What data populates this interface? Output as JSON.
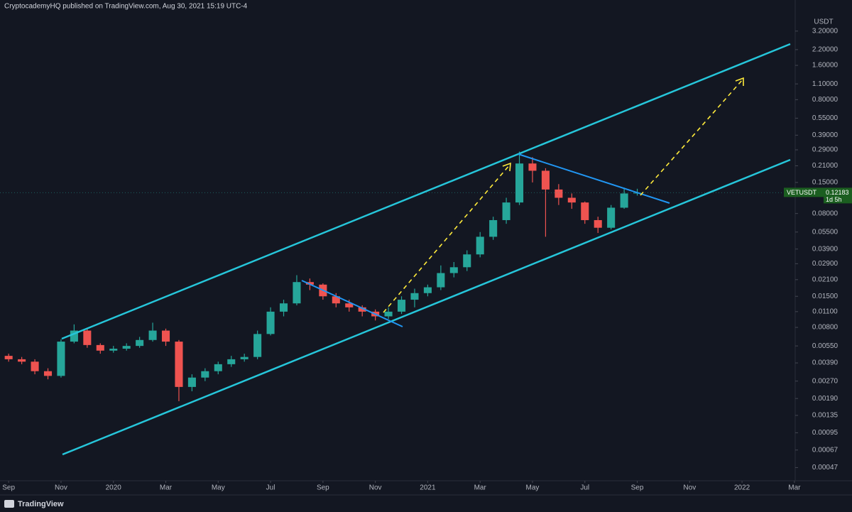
{
  "header": {
    "text": "CryptocademyHQ published on TradingView.com, Aug 30, 2021 15:19 UTC-4"
  },
  "footer": {
    "brand": "TradingView"
  },
  "chart_data": {
    "type": "candlestick",
    "symbol": "VETUSDT",
    "countdown": "1d 5h",
    "currency": "USDT",
    "log_scale": true,
    "grid": false,
    "up_color": "#26a69a",
    "down_color": "#ef5350",
    "x": [
      0,
      0.5,
      1,
      1.5,
      2,
      2.5,
      3,
      3.5,
      4,
      4.5,
      5,
      5.5,
      6,
      6.5,
      7,
      7.5,
      8,
      8.5,
      9,
      9.5,
      10,
      10.5,
      11,
      11.5,
      12,
      12.5,
      13,
      13.5,
      14,
      14.5,
      15,
      15.5,
      16,
      16.5,
      17,
      17.5,
      18,
      18.5,
      19,
      19.5,
      20,
      20.5,
      21,
      21.5,
      22,
      22.5,
      23,
      23.5,
      24
    ],
    "open": [
      0.0045,
      0.0042,
      0.004,
      0.0033,
      0.003,
      0.006,
      0.0075,
      0.0056,
      0.005,
      0.0052,
      0.0055,
      0.0062,
      0.0075,
      0.006,
      0.0024,
      0.0029,
      0.0033,
      0.0038,
      0.0042,
      0.0044,
      0.007,
      0.011,
      0.013,
      0.02,
      0.019,
      0.015,
      0.013,
      0.012,
      0.011,
      0.01,
      0.011,
      0.014,
      0.016,
      0.018,
      0.024,
      0.027,
      0.035,
      0.05,
      0.07,
      0.1,
      0.22,
      0.19,
      0.13,
      0.11,
      0.1,
      0.07,
      0.06,
      0.09,
      0.12
    ],
    "high": [
      0.0047,
      0.0044,
      0.0042,
      0.0035,
      0.0063,
      0.0085,
      0.0078,
      0.0058,
      0.0055,
      0.0058,
      0.0066,
      0.0088,
      0.0078,
      0.0062,
      0.0031,
      0.0035,
      0.004,
      0.0045,
      0.0047,
      0.0075,
      0.012,
      0.014,
      0.023,
      0.0215,
      0.0195,
      0.016,
      0.014,
      0.0125,
      0.0115,
      0.012,
      0.015,
      0.0175,
      0.019,
      0.028,
      0.03,
      0.038,
      0.055,
      0.075,
      0.11,
      0.28,
      0.25,
      0.2,
      0.145,
      0.12,
      0.102,
      0.075,
      0.095,
      0.135,
      0.132
    ],
    "low": [
      0.004,
      0.0038,
      0.0031,
      0.0028,
      0.0029,
      0.0058,
      0.0053,
      0.0047,
      0.0048,
      0.005,
      0.0053,
      0.006,
      0.0055,
      0.0018,
      0.0022,
      0.0027,
      0.0031,
      0.0036,
      0.004,
      0.0042,
      0.0068,
      0.01,
      0.0125,
      0.017,
      0.014,
      0.012,
      0.011,
      0.01,
      0.0092,
      0.0095,
      0.0105,
      0.012,
      0.015,
      0.017,
      0.022,
      0.025,
      0.033,
      0.047,
      0.065,
      0.095,
      0.15,
      0.05,
      0.095,
      0.088,
      0.065,
      0.054,
      0.058,
      0.088,
      0.115
    ],
    "close": [
      0.0042,
      0.004,
      0.0033,
      0.003,
      0.006,
      0.0075,
      0.0056,
      0.005,
      0.0052,
      0.0055,
      0.0062,
      0.0075,
      0.006,
      0.0024,
      0.0029,
      0.0033,
      0.0038,
      0.0042,
      0.0044,
      0.007,
      0.011,
      0.013,
      0.02,
      0.019,
      0.015,
      0.013,
      0.012,
      0.011,
      0.01,
      0.011,
      0.014,
      0.016,
      0.018,
      0.024,
      0.027,
      0.035,
      0.05,
      0.07,
      0.1,
      0.22,
      0.19,
      0.13,
      0.11,
      0.1,
      0.07,
      0.06,
      0.09,
      0.12,
      0.12183
    ],
    "xlim": [
      -0.33,
      30.03
    ],
    "xticks": [
      {
        "value": 0,
        "label": "Sep"
      },
      {
        "value": 2,
        "label": "Nov"
      },
      {
        "value": 4,
        "label": "2020"
      },
      {
        "value": 6,
        "label": "Mar"
      },
      {
        "value": 8,
        "label": "May"
      },
      {
        "value": 10,
        "label": "Jul"
      },
      {
        "value": 12,
        "label": "Sep"
      },
      {
        "value": 14,
        "label": "Nov"
      },
      {
        "value": 16,
        "label": "2021"
      },
      {
        "value": 18,
        "label": "Mar"
      },
      {
        "value": 20,
        "label": "May"
      },
      {
        "value": 22,
        "label": "Jul"
      },
      {
        "value": 24,
        "label": "Sep"
      },
      {
        "value": 26,
        "label": "Nov"
      },
      {
        "value": 28,
        "label": "2022"
      },
      {
        "value": 30,
        "label": "Mar"
      }
    ],
    "ylim": [
      0.00036,
      6.0
    ],
    "yticks": [
      {
        "value": 3.2,
        "label": "3.20000"
      },
      {
        "value": 2.2,
        "label": "2.20000"
      },
      {
        "value": 1.6,
        "label": "1.60000"
      },
      {
        "value": 1.1,
        "label": "1.10000"
      },
      {
        "value": 0.8,
        "label": "0.80000"
      },
      {
        "value": 0.55,
        "label": "0.55000"
      },
      {
        "value": 0.39,
        "label": "0.39000"
      },
      {
        "value": 0.29,
        "label": "0.29000"
      },
      {
        "value": 0.21,
        "label": "0.21000"
      },
      {
        "value": 0.15,
        "label": "0.15000"
      },
      {
        "value": 0.08,
        "label": "0.08000"
      },
      {
        "value": 0.055,
        "label": "0.05500"
      },
      {
        "value": 0.039,
        "label": "0.03900"
      },
      {
        "value": 0.029,
        "label": "0.02900"
      },
      {
        "value": 0.021,
        "label": "0.02100"
      },
      {
        "value": 0.015,
        "label": "0.01500"
      },
      {
        "value": 0.011,
        "label": "0.01100"
      },
      {
        "value": 0.008,
        "label": "0.00800"
      },
      {
        "value": 0.0055,
        "label": "0.00550"
      },
      {
        "value": 0.0039,
        "label": "0.00390"
      },
      {
        "value": 0.0027,
        "label": "0.00270"
      },
      {
        "value": 0.0019,
        "label": "0.00190"
      },
      {
        "value": 0.00135,
        "label": "0.00135"
      },
      {
        "value": 0.00095,
        "label": "0.00095"
      },
      {
        "value": 0.00067,
        "label": "0.00067"
      },
      {
        "value": 0.00047,
        "label": "0.00047"
      }
    ]
  }
}
